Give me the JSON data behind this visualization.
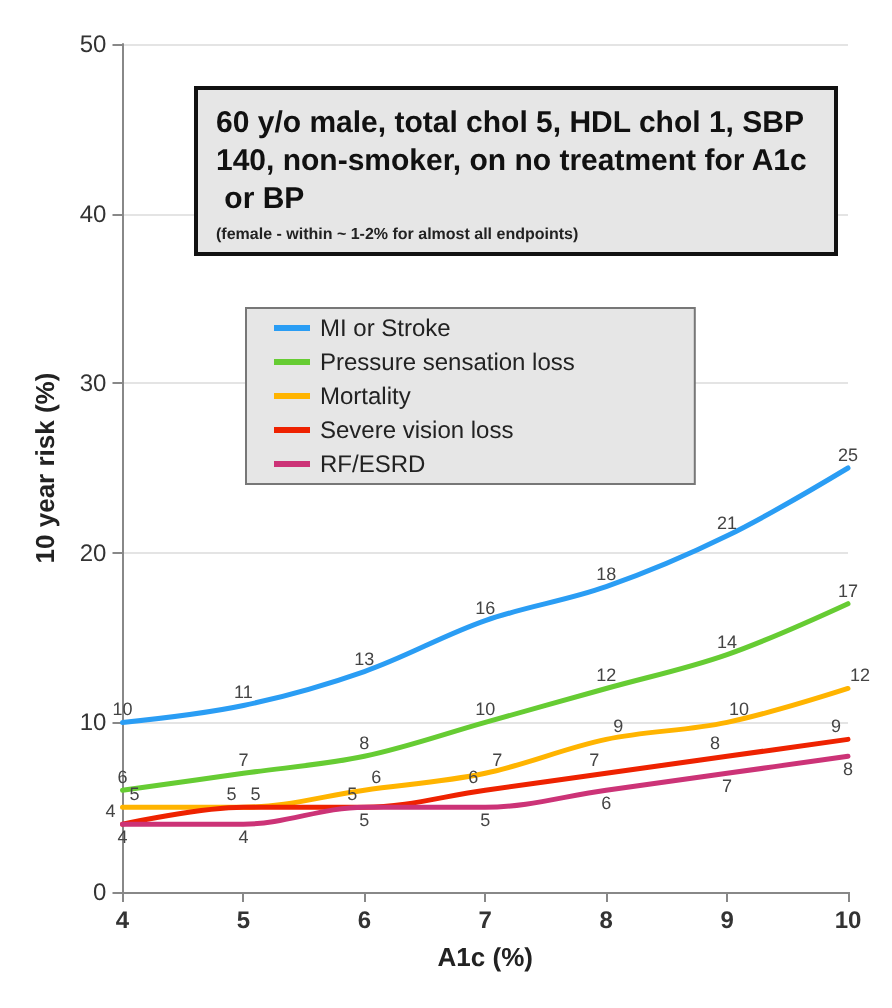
{
  "chart_data": {
    "type": "line",
    "title": "60 y/o male, total chol 5, HDL chol 1, SBP 140, non-smoker, on no treatment for A1c or BP",
    "subtitle": "(female - within ~ 1-2% for almost all endpoints)",
    "xlabel": "A1c (%)",
    "ylabel": "10 year risk (%)",
    "x": [
      4,
      5,
      6,
      7,
      8,
      9,
      10
    ],
    "series": [
      {
        "name": "MI or Stroke",
        "color": "#2a9df4",
        "values": [
          10,
          11,
          13,
          16,
          18,
          21,
          25
        ]
      },
      {
        "name": "Pressure sensation loss",
        "color": "#66cc33",
        "values": [
          6,
          7,
          8,
          10,
          12,
          14,
          17
        ]
      },
      {
        "name": "Mortality",
        "color": "#ffb400",
        "values": [
          5,
          5,
          6,
          7,
          9,
          10,
          12
        ]
      },
      {
        "name": "Severe vision loss",
        "color": "#ee2200",
        "values": [
          4,
          5,
          5,
          6,
          7,
          8,
          9
        ]
      },
      {
        "name": "RF/ESRD",
        "color": "#cc3377",
        "values": [
          4,
          4,
          5,
          5,
          6,
          7,
          8
        ]
      }
    ],
    "xlim": [
      4,
      10
    ],
    "xticks": [
      4,
      5,
      6,
      7,
      8,
      9,
      10
    ],
    "ylim": [
      0,
      50
    ],
    "yticks": [
      0,
      10,
      20,
      30,
      40,
      50
    ],
    "grid": "y",
    "legend": "top left",
    "data_labels": true,
    "marker": "none",
    "line_style": "solid"
  }
}
